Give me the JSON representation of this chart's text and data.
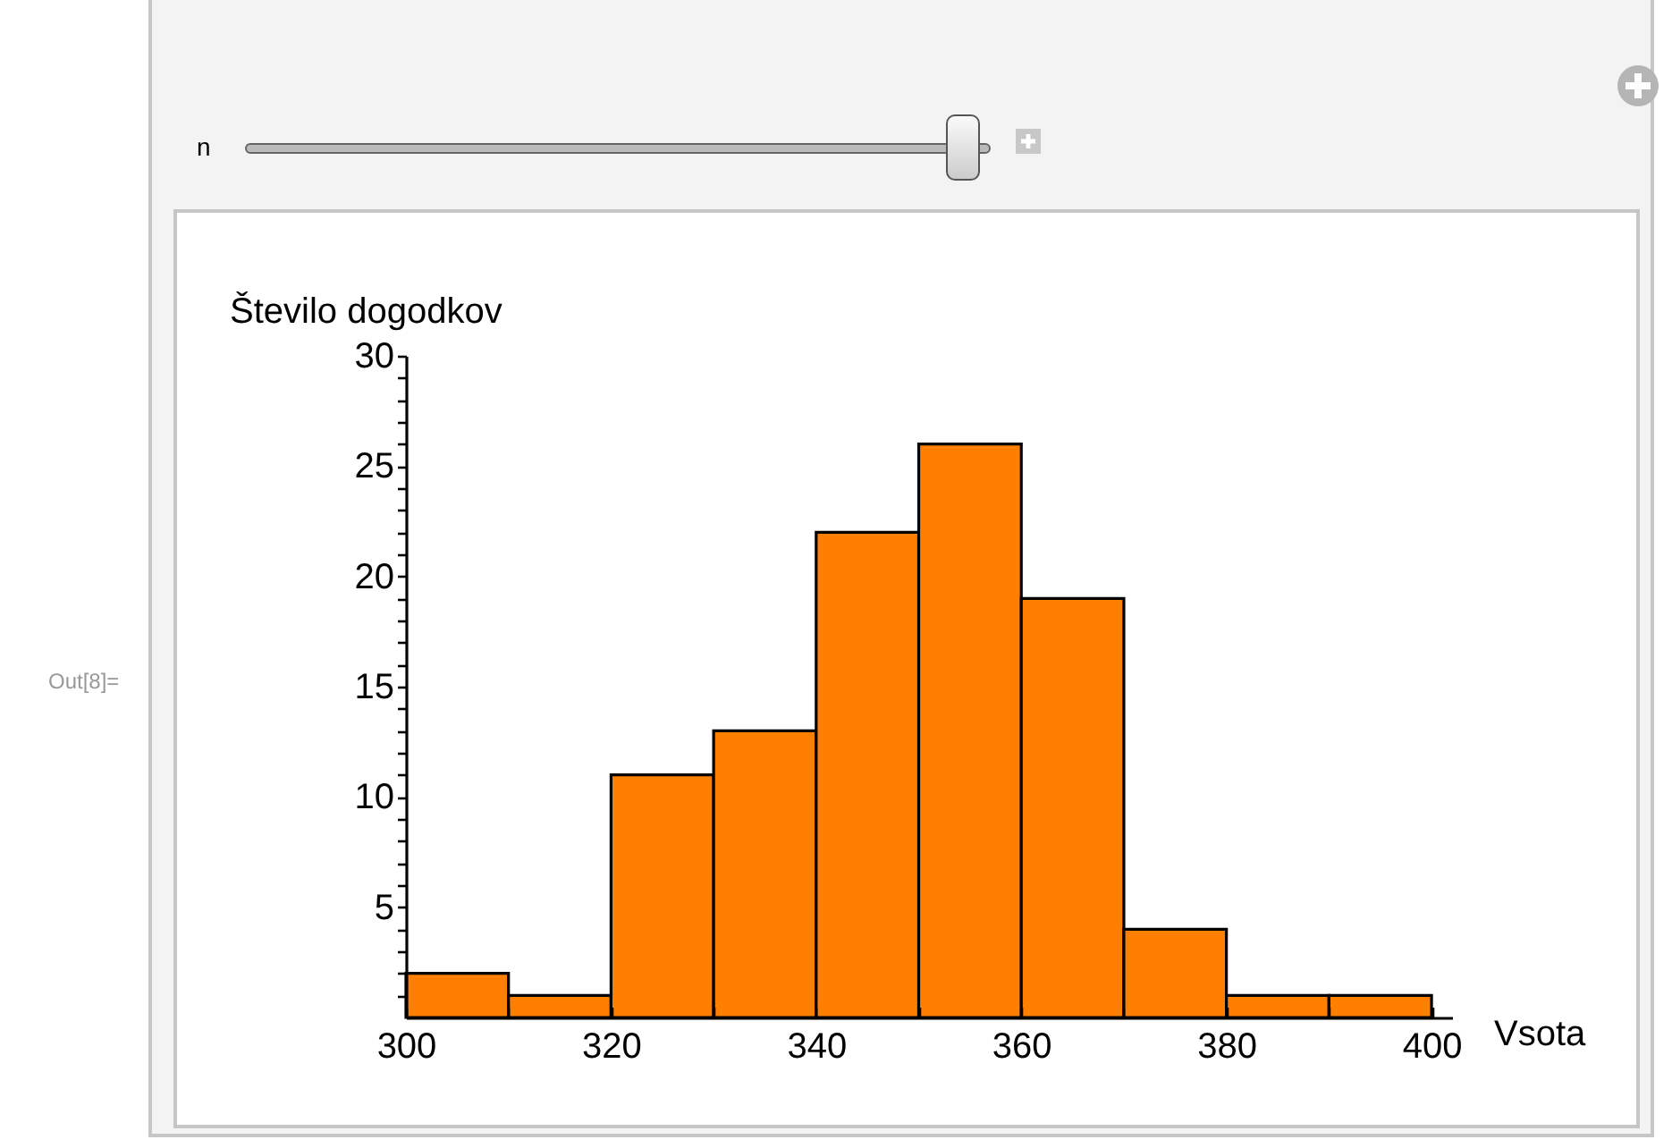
{
  "chart_data": {
    "type": "histogram",
    "xlabel": "Vsota",
    "ylabel": "Število dogodkov",
    "bins": [
      300,
      310,
      320,
      330,
      340,
      350,
      360,
      370,
      380,
      390,
      400
    ],
    "values": [
      2,
      1,
      11,
      13,
      22,
      26,
      19,
      4,
      1,
      1
    ],
    "color": "#ff8000",
    "xlim": [
      300,
      402
    ],
    "xticks": [
      300,
      {
        "value": 310,
        "label": null
      },
      320,
      {
        "value": 330,
        "label": null
      },
      340,
      {
        "value": 350,
        "label": null
      },
      360,
      {
        "value": 370,
        "label": null
      },
      380,
      {
        "value": 390,
        "label": null
      },
      400
    ],
    "ylim": [
      0,
      30
    ],
    "yticks": [
      {
        "value": 1,
        "label": null
      },
      {
        "value": 2,
        "label": null
      },
      {
        "value": 3,
        "label": null
      },
      {
        "value": 4,
        "label": null
      },
      5,
      {
        "value": 6,
        "label": null
      },
      {
        "value": 7,
        "label": null
      },
      {
        "value": 8,
        "label": null
      },
      {
        "value": 9,
        "label": null
      },
      10,
      {
        "value": 11,
        "label": null
      },
      {
        "value": 12,
        "label": null
      },
      {
        "value": 13,
        "label": null
      },
      {
        "value": 14,
        "label": null
      },
      15,
      {
        "value": 16,
        "label": null
      },
      {
        "value": 17,
        "label": null
      },
      {
        "value": 18,
        "label": null
      },
      {
        "value": 19,
        "label": null
      },
      20,
      {
        "value": 21,
        "label": null
      },
      {
        "value": 22,
        "label": null
      },
      {
        "value": 23,
        "label": null
      },
      {
        "value": 24,
        "label": null
      },
      25,
      {
        "value": 26,
        "label": null
      },
      {
        "value": 27,
        "label": null
      },
      {
        "value": 28,
        "label": null
      },
      {
        "value": 29,
        "label": null
      },
      30
    ],
    "grid": false,
    "annotations": [
      "n",
      "Out[8]="
    ]
  }
}
